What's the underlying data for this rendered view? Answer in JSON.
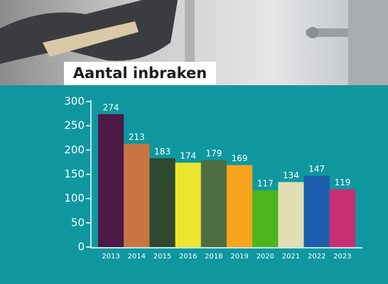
{
  "chart_data": {
    "type": "bar",
    "title": "Aantal inbraken",
    "categories": [
      "2013",
      "2014",
      "2015",
      "2016",
      "2018",
      "2019",
      "2020",
      "2021",
      "2022",
      "2023"
    ],
    "values": [
      274,
      213,
      183,
      174,
      179,
      169,
      117,
      134,
      147,
      119
    ],
    "colors": [
      "#4d1a47",
      "#c97541",
      "#2f4a31",
      "#ede62e",
      "#4e6e42",
      "#f7a31c",
      "#4cb51d",
      "#e2dfb4",
      "#1c5eab",
      "#c72e74"
    ],
    "ylim": [
      0,
      300
    ],
    "yticks": [
      0,
      50,
      100,
      150,
      200,
      250,
      300
    ],
    "grid": false
  }
}
